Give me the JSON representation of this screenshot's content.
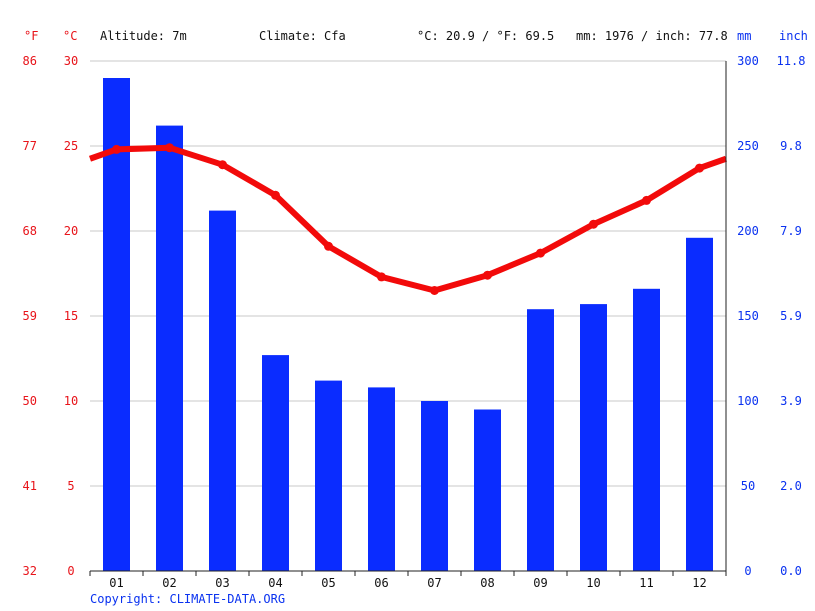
{
  "header": {
    "altitude": "Altitude: 7m",
    "climate": "Climate: Cfa",
    "temp_summary": "°C: 20.9 / °F: 69.5",
    "precip_summary": "mm: 1976 / inch: 77.8"
  },
  "unit_labels": {
    "fahrenheit": "°F",
    "celsius": "°C",
    "mm": "mm",
    "inch": "inch"
  },
  "copyright": "Copyright: CLIMATE-DATA.ORG",
  "colors": {
    "temperature": "#f20a0a",
    "precipitation": "#0a2cff",
    "left_axis_text": "#e8141a",
    "right_axis_text": "#0a32f0"
  },
  "chart_data": {
    "type": "bar",
    "categories": [
      "01",
      "02",
      "03",
      "04",
      "05",
      "06",
      "07",
      "08",
      "09",
      "10",
      "11",
      "12"
    ],
    "series": [
      {
        "kind": "bar",
        "axis": "right",
        "values": [
          290,
          262,
          212,
          127,
          112,
          108,
          100,
          95,
          154,
          157,
          166,
          196
        ]
      },
      {
        "kind": "line",
        "axis": "left",
        "values": [
          24.8,
          24.9,
          23.9,
          22.1,
          19.1,
          17.3,
          16.5,
          17.4,
          18.7,
          20.4,
          21.8,
          23.7
        ]
      }
    ],
    "temp_axis": {
      "ylim": [
        0,
        30
      ],
      "celsius_ticks": [
        "0",
        "5",
        "10",
        "15",
        "20",
        "25",
        "30"
      ],
      "fahrenheit_ticks": [
        "32",
        "41",
        "50",
        "59",
        "68",
        "77",
        "86"
      ]
    },
    "precip_axis": {
      "ylim": [
        0,
        300
      ],
      "mm_ticks": [
        "0",
        "50",
        "100",
        "150",
        "200",
        "250",
        "300"
      ],
      "inch_ticks": [
        "0.0",
        "2.0",
        "3.9",
        "5.9",
        "7.9",
        "9.8",
        "11.8"
      ]
    },
    "grid": true
  }
}
